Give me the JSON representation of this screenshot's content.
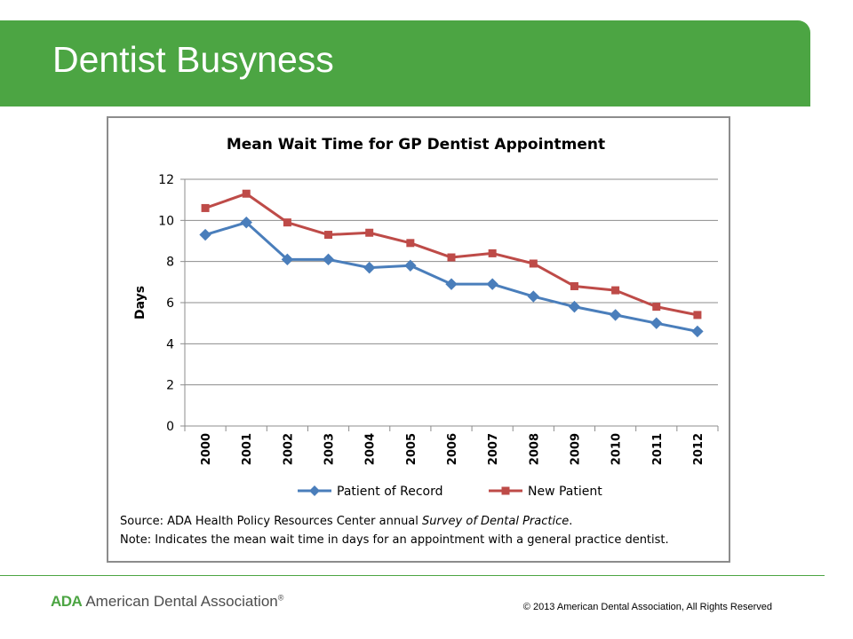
{
  "slide": {
    "title": "Dentist Busyness"
  },
  "chart_data": {
    "type": "line",
    "title": "Mean Wait Time for GP Dentist Appointment",
    "xlabel": "",
    "ylabel": "Days",
    "categories": [
      "2000",
      "2001",
      "2002",
      "2003",
      "2004",
      "2005",
      "2006",
      "2007",
      "2008",
      "2009",
      "2010",
      "2011",
      "2012"
    ],
    "ylim": [
      0,
      12
    ],
    "yticks": [
      0,
      2,
      4,
      6,
      8,
      10,
      12
    ],
    "grid": true,
    "legend": "bottom",
    "series": [
      {
        "name": "Patient of Record",
        "color": "#4a7ebb",
        "marker": "diamond",
        "values": [
          9.3,
          9.9,
          8.1,
          8.1,
          7.7,
          7.8,
          6.9,
          6.9,
          6.3,
          5.8,
          5.4,
          5.0,
          4.6
        ]
      },
      {
        "name": "New Patient",
        "color": "#be4b48",
        "marker": "square",
        "values": [
          10.6,
          11.3,
          9.9,
          9.3,
          9.4,
          8.9,
          8.2,
          8.4,
          7.9,
          6.8,
          6.6,
          5.8,
          5.4
        ]
      }
    ]
  },
  "notes": {
    "source_prefix": "Source: ADA Health Policy Resources Center annual ",
    "source_italic": "Survey of Dental Practice",
    "source_suffix": ".",
    "note": "Note: Indicates the mean wait time in days for an appointment with a general practice dentist."
  },
  "footer": {
    "brand_mark": "ADA",
    "brand_name": "American Dental Association",
    "brand_reg": "®",
    "copyright": "© 2013 American Dental Association, All Rights Reserved"
  }
}
